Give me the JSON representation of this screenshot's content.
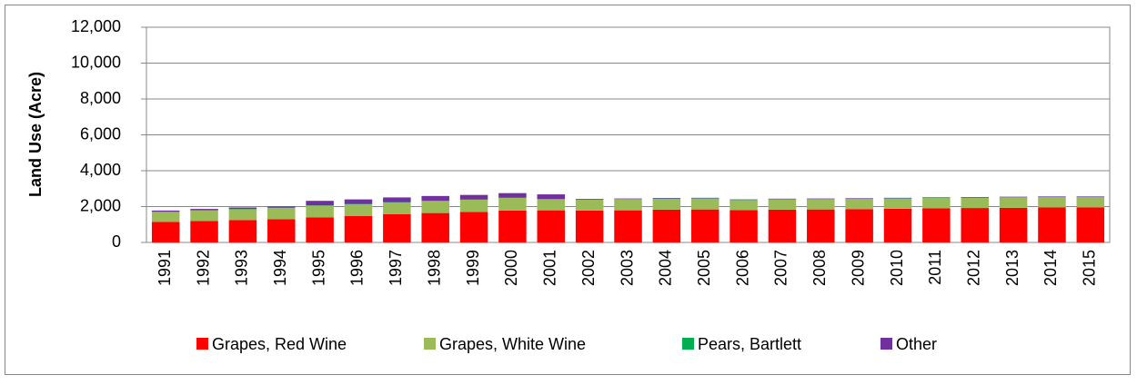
{
  "chart_data": {
    "type": "stacked_bar",
    "y_label": "Land Use (Acre)",
    "categories": [
      "1991",
      "1992",
      "1993",
      "1994",
      "1995",
      "1996",
      "1997",
      "1998",
      "1999",
      "2000",
      "2001",
      "2002",
      "2003",
      "2004",
      "2005",
      "2006",
      "2007",
      "2008",
      "2009",
      "2010",
      "2011",
      "2012",
      "2013",
      "2014",
      "2015"
    ],
    "series": [
      {
        "name": "Grapes, Red Wine",
        "color": "#ff0000",
        "values": [
          1150,
          1200,
          1250,
          1300,
          1400,
          1480,
          1570,
          1640,
          1700,
          1780,
          1790,
          1780,
          1790,
          1830,
          1840,
          1800,
          1830,
          1840,
          1860,
          1880,
          1900,
          1920,
          1930,
          1950,
          1960
        ]
      },
      {
        "name": "Grapes, White Wine",
        "color": "#9bbb59",
        "values": [
          550,
          580,
          600,
          620,
          650,
          650,
          660,
          670,
          680,
          700,
          620,
          600,
          610,
          600,
          600,
          550,
          560,
          560,
          560,
          560,
          570,
          560,
          570,
          570,
          560
        ]
      },
      {
        "name": "Pears, Bartlett",
        "color": "#00b050",
        "values": [
          20,
          20,
          20,
          20,
          20,
          20,
          20,
          20,
          20,
          20,
          20,
          20,
          20,
          20,
          20,
          20,
          20,
          20,
          20,
          20,
          20,
          20,
          20,
          20,
          20
        ]
      },
      {
        "name": "Other",
        "color": "#7030a0",
        "values": [
          60,
          70,
          80,
          70,
          250,
          250,
          260,
          260,
          250,
          250,
          250,
          30,
          30,
          30,
          30,
          30,
          30,
          30,
          30,
          30,
          30,
          30,
          30,
          30,
          30
        ]
      }
    ],
    "ylim": [
      0,
      12000
    ],
    "yticks": [
      0,
      {
        "value": 2000,
        "label": "2,000"
      },
      {
        "value": 4000,
        "label": "4,000"
      },
      {
        "value": 6000,
        "label": "6,000"
      },
      {
        "value": 8000,
        "label": "8,000"
      },
      {
        "value": 10000,
        "label": "10,000"
      },
      {
        "value": 12000,
        "label": "12,000"
      }
    ],
    "grid": true,
    "legend": "bottom"
  }
}
